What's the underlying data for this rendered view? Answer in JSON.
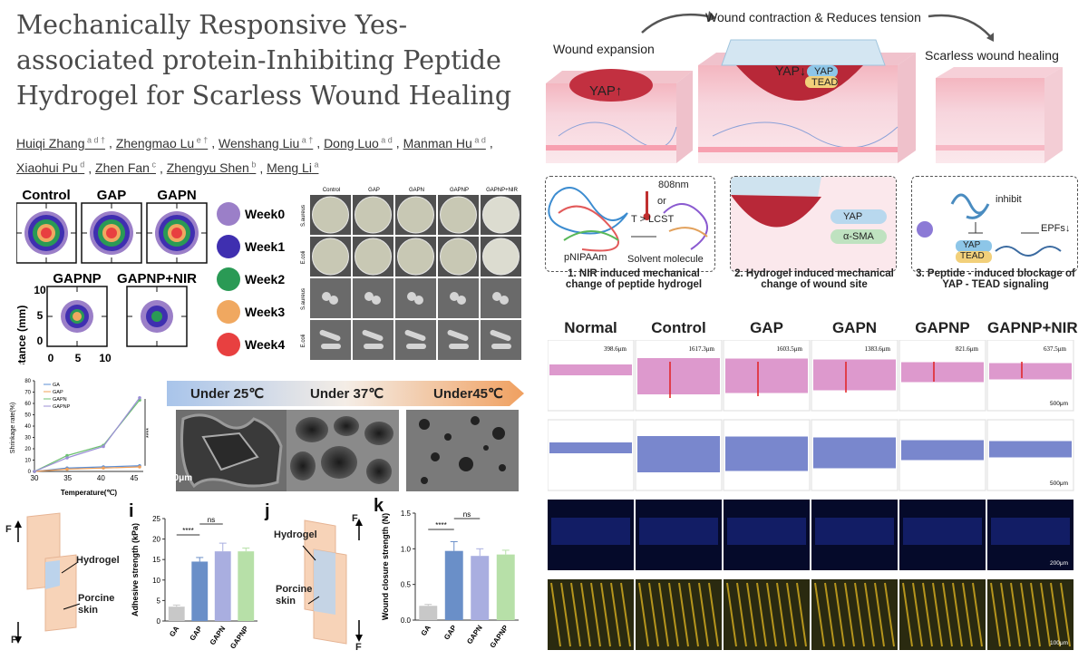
{
  "paper": {
    "title": "Mechanically Responsive Yes-associated protein-Inhibiting Peptide Hydrogel for Scarless Wound Healing",
    "authors": [
      {
        "name": "Huiqi Zhang",
        "sup": "a d †"
      },
      {
        "name": "Zhengmao Lu",
        "sup": "e †"
      },
      {
        "name": "Wenshang Liu",
        "sup": "a †"
      },
      {
        "name": "Dong Luo",
        "sup": "a d"
      },
      {
        "name": "Manman Hu",
        "sup": "a d"
      },
      {
        "name": "Xiaohui Pu",
        "sup": "d"
      },
      {
        "name": "Zhen Fan",
        "sup": "c"
      },
      {
        "name": "Zhengyu Shen",
        "sup": "b"
      },
      {
        "name": "Meng Li",
        "sup": "a"
      }
    ]
  },
  "schematic": {
    "top_caption": "Wound contraction & Reduces tension",
    "left_label": "Wound expansion",
    "right_label": "Scarless wound healing",
    "yap_up": "YAP↑",
    "yap_down": "YAP↓",
    "yap": "YAP",
    "tead": "TEAD",
    "step1": {
      "caption": "1.  NIR induced mechanical change of peptide hydrogel",
      "nm": "808nm",
      "or": "or",
      "lcst": "T > LCST",
      "pnipaam": "pNIPAAm",
      "solvent": "Solvent molecule"
    },
    "step2": {
      "caption": "2.  Hydrogel induced mechanical change of wound site",
      "yap": "YAP",
      "sma": "α-SMA"
    },
    "step3": {
      "caption": "3.  Peptide - induced blockage of YAP - TEAD signaling",
      "inhibit": "inhibit",
      "epfs": "EPFs↓",
      "yap": "YAP",
      "tead": "TEAD"
    }
  },
  "contour": {
    "groups": [
      "Control",
      "GAP",
      "GAPN",
      "GAPNP",
      "GAPNP+NIR"
    ],
    "ylabel": "Distance (mm)",
    "yticks": [
      "10",
      "5",
      "0"
    ],
    "xticks": [
      "0",
      "5",
      "10"
    ],
    "legend": [
      {
        "label": "Week0",
        "color": "#9b7fc8"
      },
      {
        "label": "Week1",
        "color": "#3f2fb0"
      },
      {
        "label": "Week2",
        "color": "#2a9a55"
      },
      {
        "label": "Week3",
        "color": "#f0a860"
      },
      {
        "label": "Week4",
        "color": "#e84040"
      }
    ]
  },
  "antibacterial": {
    "columns": [
      "Control",
      "GAP",
      "GAPN",
      "GAPNP",
      "GAPNP+NIR"
    ],
    "rows": [
      "S.aureus",
      "E.coli",
      "S.aureus",
      "E.coli"
    ]
  },
  "chart_data": [
    {
      "type": "line",
      "xlabel": "Temperature(℃)",
      "ylabel": "Shrinkage rate(%)",
      "x": [
        25,
        35,
        40,
        45
      ],
      "xlim": [
        30,
        45
      ],
      "xticks": [
        "30",
        "35",
        "40",
        "45"
      ],
      "ylim": [
        0,
        80
      ],
      "yticks": [
        "0",
        "10",
        "20",
        "30",
        "40",
        "50",
        "60",
        "70",
        "80"
      ],
      "significance": "****",
      "legend_position": "top-left",
      "series": [
        {
          "name": "GA",
          "color": "#5b8fd6",
          "values": [
            0,
            3,
            4,
            5
          ]
        },
        {
          "name": "GAP",
          "color": "#f0a05a",
          "values": [
            0,
            2,
            3,
            4
          ]
        },
        {
          "name": "GAPN",
          "color": "#6cc070",
          "values": [
            0,
            14,
            23,
            63
          ]
        },
        {
          "name": "GAPNP",
          "color": "#9b8fd6",
          "values": [
            0,
            12,
            22,
            65
          ]
        }
      ]
    },
    {
      "type": "bar",
      "panel": "i",
      "ylabel": "Adhesive strength (kPa)",
      "categories": [
        "GA",
        "GAP",
        "GAPN",
        "GAPNP"
      ],
      "values": [
        3.5,
        14.5,
        17,
        17
      ],
      "errors": [
        0.4,
        1.0,
        2.0,
        0.8
      ],
      "colors": [
        "#c8c8c8",
        "#6a8fc8",
        "#a9aee0",
        "#b7e0a8"
      ],
      "ylim": [
        0,
        25
      ],
      "yticks": [
        "0",
        "5",
        "10",
        "15",
        "20",
        "25"
      ],
      "sig": [
        {
          "label": "****",
          "from": 0,
          "to": 1
        },
        {
          "label": "ns",
          "from": 1,
          "to": 2
        }
      ]
    },
    {
      "type": "bar",
      "panel": "k",
      "ylabel": "Wound closure strength (N)",
      "categories": [
        "GA",
        "GAP",
        "GAPN",
        "GAPNP"
      ],
      "values": [
        0.2,
        0.97,
        0.9,
        0.92
      ],
      "errors": [
        0.02,
        0.13,
        0.1,
        0.06
      ],
      "colors": [
        "#c8c8c8",
        "#6a8fc8",
        "#a9aee0",
        "#b7e0a8"
      ],
      "ylim": [
        0,
        1.5
      ],
      "yticks": [
        "0.0",
        "0.5",
        "1.0",
        "1.5"
      ],
      "sig": [
        {
          "label": "****",
          "from": 0,
          "to": 1
        },
        {
          "label": "ns",
          "from": 1,
          "to": 2
        }
      ]
    }
  ],
  "sem": {
    "banner": [
      "Under 25℃",
      "Under 37℃",
      "Under45℃"
    ],
    "scale": "50μm"
  },
  "adhesion": {
    "panel_i": "i",
    "panel_j": "j",
    "panel_k": "k",
    "force": "F",
    "hydrogel": "Hydrogel",
    "porcine": "Porcine skin",
    "porcine_a": "Porcine",
    "porcine_b": "skin"
  },
  "histology": {
    "groups": [
      "Normal",
      "Control",
      "GAP",
      "GAPN",
      "GAPNP",
      "GAPNP+NIR"
    ],
    "thickness": [
      "398.6μm",
      "1617.3μm",
      "1603.5μm",
      "1383.6μm",
      "821.6μm",
      "637.5μm"
    ],
    "scales": [
      "500μm",
      "500μm",
      "200μm",
      "100μm"
    ]
  }
}
